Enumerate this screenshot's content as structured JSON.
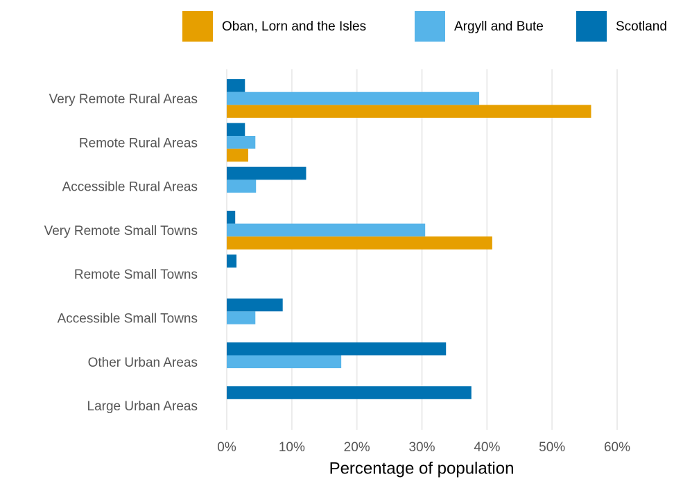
{
  "chart_data": {
    "type": "bar",
    "orientation": "horizontal",
    "x_label": "Percentage of population",
    "categories": [
      "Very Remote Rural Areas",
      "Remote Rural Areas",
      "Accessible Rural Areas",
      "Very Remote Small Towns",
      "Remote Small Towns",
      "Accessible Small Towns",
      "Other Urban Areas",
      "Large Urban Areas"
    ],
    "series": [
      {
        "name": "Oban, Lorn and the Isles",
        "color": "#E69F00",
        "values": [
          56.0,
          3.3,
          0,
          40.8,
          0,
          0,
          0,
          0
        ]
      },
      {
        "name": "Argyll and Bute",
        "color": "#56B4E9",
        "values": [
          38.8,
          4.4,
          4.5,
          30.5,
          0,
          4.4,
          17.6,
          0
        ]
      },
      {
        "name": "Scotland",
        "color": "#0072B2",
        "values": [
          2.8,
          2.8,
          12.2,
          1.3,
          1.5,
          8.6,
          33.7,
          37.6
        ]
      }
    ],
    "xlim": [
      0,
      60
    ],
    "xticks": [
      {
        "value": 0,
        "label": "0%"
      },
      {
        "value": 10,
        "label": "10%"
      },
      {
        "value": 20,
        "label": "20%"
      },
      {
        "value": 30,
        "label": "30%"
      },
      {
        "value": 40,
        "label": "40%"
      },
      {
        "value": 50,
        "label": "50%"
      },
      {
        "value": 60,
        "label": "60%"
      }
    ],
    "grid": true,
    "legend": "top"
  }
}
